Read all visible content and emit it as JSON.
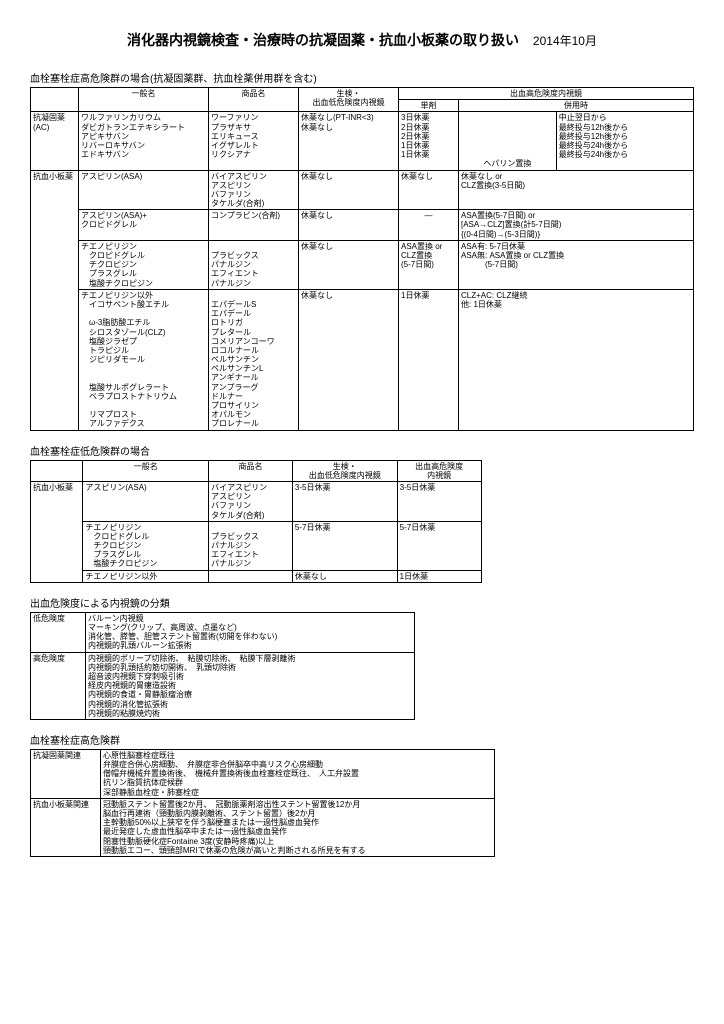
{
  "page": {
    "title": "消化器内視鏡検査・治療時の抗凝固薬・抗血小板薬の取り扱い",
    "date": "2014年10月"
  },
  "section1": {
    "title": "血栓塞栓症高危険群の場合(抗凝固薬群、抗血栓薬併用群を含む)",
    "headers": {
      "generic": "一般名",
      "brand": "商品名",
      "biopsy": "生検・\n出血低危険度内視鏡",
      "bleeding": "出血高危険度内視鏡",
      "single": "単剤",
      "combo": "併用時"
    },
    "rows": [
      {
        "cat": "抗凝固薬\n(AC)",
        "g": "ワルファリンカリウム\nダビガトランエテキシラート\nアピキサバン\nリバーロキサバン\nエドキサバン",
        "b": "ワーファリン\nプラザキサ\nエリキュース\nイグザレルト\nリクシアナ",
        "bx": "休薬なし(PT-INR<3)\n休薬なし",
        "s": "3日休薬\n2日休薬\n2日休薬\n1日休薬\n1日休薬",
        "c": "\n\n\n\n\nヘパリン置換",
        "c2": "中止翌日から\n最終投与12h後から\n最終投与12h後から\n最終投与24h後から\n最終投与24h後から"
      },
      {
        "cat": "抗血小板薬",
        "g": "アスピリン(ASA)",
        "b": "バイアスピリン\nアスピリン\nバファリン\nタケルダ(合剤)",
        "bx": "休薬なし",
        "s": "休薬なし",
        "c": "休薬なし or\nCLZ置換(3-5日間)"
      },
      {
        "g": "アスピリン(ASA)+\nクロピドグレル",
        "b": "コンプラビン(合剤)",
        "bx": "休薬なし",
        "s": "—",
        "c": "ASA置換(5-7日間) or\n[ASA→CLZ]置換(計5-7日間)\n{(0-4日間)→(5-3日間)}"
      },
      {
        "g": "チエノピリジン\n　クロピドグレル\n　チクロピジン\n　プラスグレル\n　塩酸チクロピジン",
        "b": "\nプラビックス\nパナルジン\nエフィエント\nパナルジン",
        "bx": "休薬なし",
        "s": "ASA置換 or\nCLZ置換\n(5-7日間)",
        "c": "ASA有: 5-7日休薬\nASA無: ASA置換 or CLZ置換\n　　　(5-7日間)"
      },
      {
        "g": "チエノピリジン以外\n　イコサペント酸エチル\n\n　ω-3脂肪酸エチル\n　シロスタゾール(CLZ)\n　塩酸ジラゼプ\n　トラピジル\n　ジピリダモール\n\n\n　塩酸サルポグレラート\n　ベラプロストナトリウム\n\n　リマプロスト\n　アルファデクス",
        "b": "\nエパデールS\nエパデール\nロトリガ\nプレタール\nコメリアンコーワ\nロコルナール\nペルサンチン\nペルサンチンL\nアンギナール\nアンプラーグ\nドルナー\nプロサイリン\nオパルモン\nプロレナール",
        "bx": "休薬なし",
        "s": "1日休薬",
        "c": "CLZ+AC: CLZ継続\n他: 1日休薬"
      }
    ]
  },
  "section2": {
    "title": "血栓塞栓症低危険群の場合",
    "headers": {
      "cat": "",
      "generic": "一般名",
      "brand": "商品名",
      "biopsy": "生検・\n出血低危険度内視鏡",
      "bleeding": "出血高危険度\n内視鏡"
    },
    "rows": [
      {
        "cat": "抗血小板薬",
        "g": "アスピリン(ASA)",
        "b": "バイアスピリン\nアスピリン\nバファリン\nタケルダ(合剤)",
        "bx": "3-5日休薬",
        "bl": "3-5日休薬"
      },
      {
        "g": "チエノピリジン\n　クロピドグレル\n　チクロピジン\n　プラスグレル\n　塩酸チクロピジン",
        "b": "\nプラビックス\nパナルジン\nエフィエント\nパナルジン",
        "bx": "5-7日休薬",
        "bl": "5-7日休薬"
      },
      {
        "g": "チエノピリジン以外",
        "b": "",
        "bx": "休薬なし",
        "bl": "1日休薬"
      }
    ]
  },
  "section3": {
    "title": "出血危険度による内視鏡の分類",
    "rows": [
      {
        "k": "低危険度",
        "v": "バルーン内視鏡\nマーキング(クリップ、高周波、点墨など)\n消化管、膵管、胆管ステント留置術(切開を伴わない)\n内視鏡的乳頭バルーン拡張術"
      },
      {
        "k": "高危険度",
        "v": "内視鏡的ポリープ切除術、　粘膜切除術、　粘膜下層剥離術\n内視鏡的乳頭括約筋切開術、　乳頭切除術\n超音波内視鏡下穿刺吸引術\n経皮内視鏡的胃瘻造設術\n内視鏡的食道・胃静脈瘤治療\n内視鏡的消化管拡張術\n内視鏡的粘膜焼灼術"
      }
    ]
  },
  "section4": {
    "title": "血栓塞栓症高危険群",
    "rows": [
      {
        "k": "抗凝固薬関連",
        "v": "心原性脳塞栓症既往\n弁膜症合併心房細動、　弁膜症非合併脳卒中高リスク心房細動\n僧帽弁機械弁置換術後、　機械弁置換術後血栓塞栓症既往、　人工弁設置\n抗リン脂質抗体症候群\n深部静脈血栓症・肺塞栓症"
      },
      {
        "k": "抗血小板薬関連",
        "v": "冠動脈ステント留置後2か月、　冠動脈薬剤溶出性ステント留置後12か月\n脳血行再建術（頸動脈内膜剥離術、ステント留置）後2か月\n主幹動脈50%以上狭窄を伴う脳梗塞または一過性脳虚血発作\n最近発症した虚血性脳卒中または一過性脳虚血発作\n閉塞性動脈硬化症Fontaine 3度(安静時疼痛)以上\n頸動脈エコー、頭頸部MRIで休薬の危険が高いと判断される所見を有する"
      }
    ]
  }
}
